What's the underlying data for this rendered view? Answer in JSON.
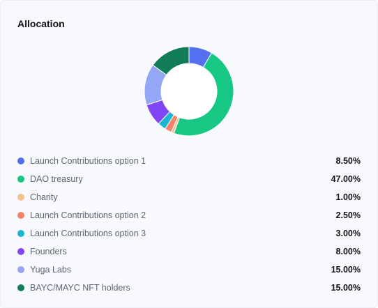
{
  "card": {
    "title": "Allocation"
  },
  "chart_data": {
    "type": "pie",
    "style": "donut",
    "title": "Allocation",
    "legend": "bottom",
    "start_angle_deg": 0,
    "slices": [
      {
        "label": "Launch Contributions option 1",
        "value": 8.5,
        "display": "8.50%",
        "color": "#546ff0"
      },
      {
        "label": "DAO treasury",
        "value": 47.0,
        "display": "47.00%",
        "color": "#17c784"
      },
      {
        "label": "Charity",
        "value": 1.0,
        "display": "1.00%",
        "color": "#f2c08b"
      },
      {
        "label": "Launch Contributions option 2",
        "value": 2.5,
        "display": "2.50%",
        "color": "#f5836b"
      },
      {
        "label": "Launch Contributions option 3",
        "value": 3.0,
        "display": "3.00%",
        "color": "#1bb6cf"
      },
      {
        "label": "Founders",
        "value": 8.0,
        "display": "8.00%",
        "color": "#8045f5"
      },
      {
        "label": "Yuga Labs",
        "value": 15.0,
        "display": "15.00%",
        "color": "#94a6f6"
      },
      {
        "label": "BAYC/MAYC NFT holders",
        "value": 15.0,
        "display": "15.00%",
        "color": "#127c58"
      }
    ]
  }
}
